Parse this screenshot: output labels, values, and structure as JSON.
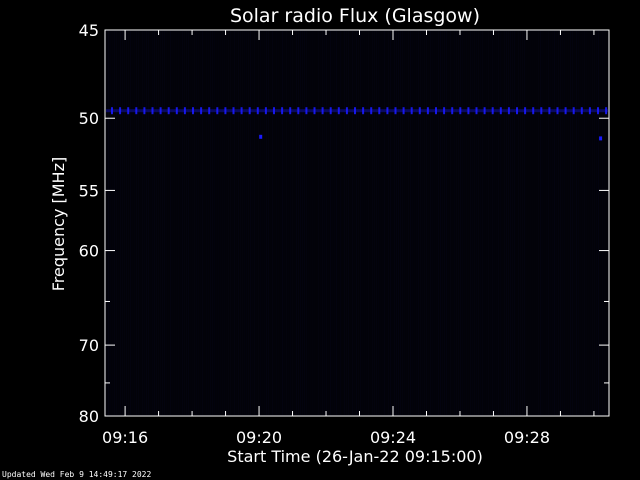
{
  "chart_data": {
    "type": "heatmap",
    "title": "Solar radio Flux (Glasgow)",
    "xlabel": "Start Time (26-Jan-22 09:15:00)",
    "ylabel": "Frequency [MHz]",
    "x_unit": "minutes after 09:15:00",
    "xlim": [
      0.4,
      15.45
    ],
    "ylim": [
      45,
      80
    ],
    "y_scale": "reciprocal",
    "x_tick_values": [
      1,
      5,
      9,
      13
    ],
    "x_tick_labels": [
      "09:16",
      "09:20",
      "09:24",
      "09:28"
    ],
    "y_tick_values": [
      45,
      50,
      55,
      60,
      70,
      80
    ],
    "y_tick_labels": [
      "45",
      "50",
      "55",
      "60",
      "70",
      "80"
    ],
    "background_color": "#000000",
    "axis_color": "#ffffff",
    "signal_color": "#1a1aff",
    "emission_band": {
      "frequency_mhz": 49.5,
      "intensity": "low",
      "pattern": "periodic dashes across the full time range"
    },
    "spots": [
      {
        "time_min": 5.05,
        "frequency_mhz": 51.2
      },
      {
        "time_min": 15.2,
        "frequency_mhz": 51.3
      }
    ]
  },
  "footer": {
    "updated_text": "Updated Wed Feb  9 14:49:17 2022"
  }
}
